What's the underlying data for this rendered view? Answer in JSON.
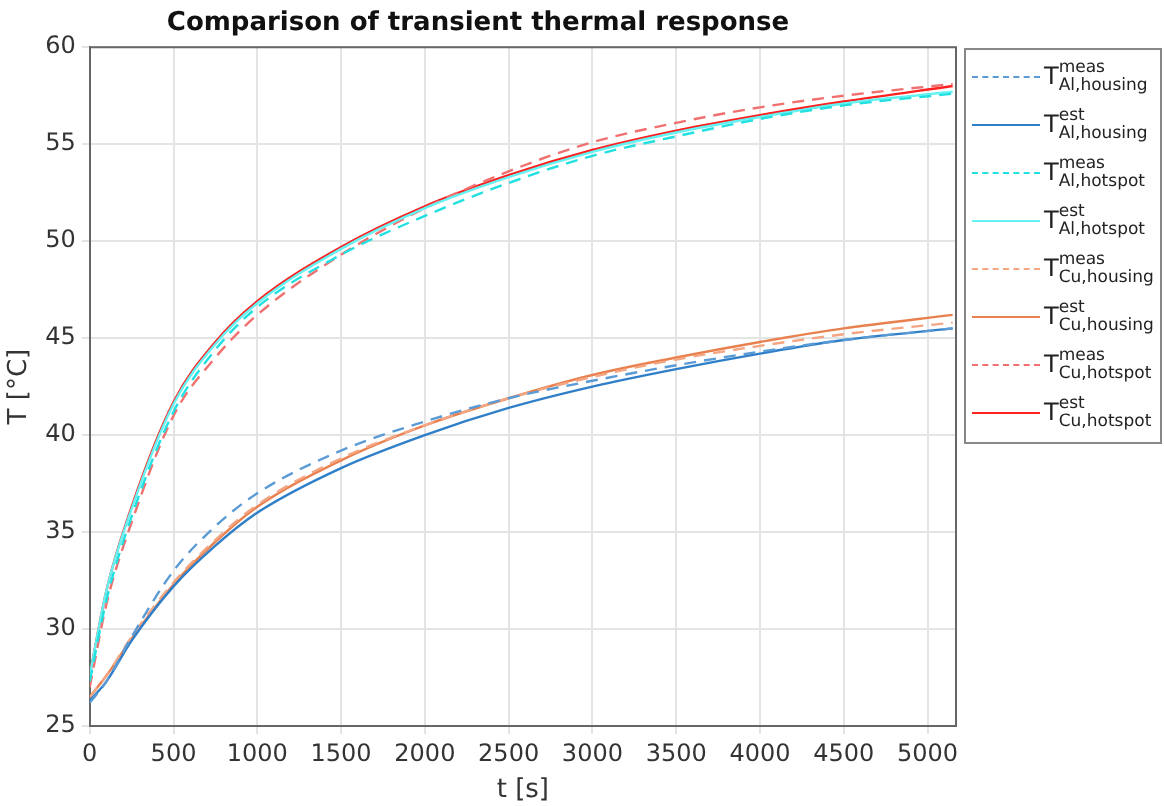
{
  "chart_data": {
    "type": "line",
    "title": "Comparison of transient thermal response",
    "xlabel": "t [s]",
    "ylabel": "T [°C]",
    "x": [
      0,
      100,
      250,
      500,
      750,
      1000,
      1500,
      2000,
      2500,
      3000,
      3500,
      4000,
      4500,
      5150
    ],
    "xlim": [
      0,
      5170
    ],
    "xticks": [
      0,
      500,
      1000,
      1500,
      2000,
      2500,
      3000,
      3500,
      4000,
      4500,
      5000
    ],
    "ylim": [
      25,
      60
    ],
    "yticks": [
      25,
      30,
      35,
      40,
      45,
      50,
      55,
      60
    ],
    "grid": true,
    "legend": "top right",
    "marker": "none",
    "series": [
      {
        "name": "T$^{meas}$$_{Al,housing}$",
        "color": "#5b9bd5",
        "line_style": "dashed",
        "values": [
          26.2,
          27.3,
          29.6,
          33.0,
          35.3,
          37.0,
          39.2,
          40.7,
          41.9,
          42.8,
          43.6,
          44.3,
          44.9,
          45.5
        ]
      },
      {
        "name": "T$^{est}$$_{Al,housing}$",
        "color": "#2f7fc8",
        "line_style": "solid",
        "values": [
          26.3,
          27.3,
          29.4,
          32.2,
          34.3,
          36.0,
          38.3,
          40.0,
          41.4,
          42.5,
          43.4,
          44.2,
          44.9,
          45.5
        ]
      },
      {
        "name": "T$^{meas}$$_{Al,hotspot}$",
        "color": "#22e0e0",
        "line_style": "dashed",
        "values": [
          27.3,
          31.5,
          35.8,
          41.2,
          44.4,
          46.6,
          49.3,
          51.3,
          53.0,
          54.4,
          55.4,
          56.3,
          57.0,
          57.6
        ]
      },
      {
        "name": "T$^{est}$$_{Al,hotspot}$",
        "color": "#66f2f2",
        "line_style": "solid",
        "values": [
          27.6,
          32.0,
          36.2,
          41.6,
          44.7,
          46.8,
          49.6,
          51.7,
          53.3,
          54.6,
          55.6,
          56.4,
          57.1,
          57.7
        ]
      },
      {
        "name": "T$^{meas}$$_{Cu,housing}$",
        "color": "#f4a582",
        "line_style": "dashed",
        "values": [
          26.5,
          27.6,
          29.6,
          32.4,
          34.6,
          36.4,
          38.8,
          40.5,
          41.9,
          43.0,
          43.9,
          44.6,
          45.2,
          45.8
        ]
      },
      {
        "name": "T$^{est}$$_{Cu,housing}$",
        "color": "#e8804f",
        "line_style": "solid",
        "values": [
          26.5,
          27.6,
          29.5,
          32.3,
          34.5,
          36.3,
          38.7,
          40.5,
          41.9,
          43.1,
          44.0,
          44.8,
          45.5,
          46.2
        ]
      },
      {
        "name": "T$^{meas}$$_{Cu,hotspot}$",
        "color": "#f07070",
        "line_style": "dashed",
        "values": [
          27.0,
          31.3,
          35.5,
          41.0,
          44.0,
          46.2,
          49.3,
          51.7,
          53.6,
          55.1,
          56.1,
          56.9,
          57.5,
          58.1
        ]
      },
      {
        "name": "T$^{est}$$_{Cu,hotspot}$",
        "color": "#ff2020",
        "line_style": "solid",
        "values": [
          27.6,
          32.0,
          36.3,
          41.7,
          44.8,
          46.9,
          49.7,
          51.8,
          53.4,
          54.7,
          55.7,
          56.5,
          57.2,
          58.0
        ]
      }
    ]
  }
}
